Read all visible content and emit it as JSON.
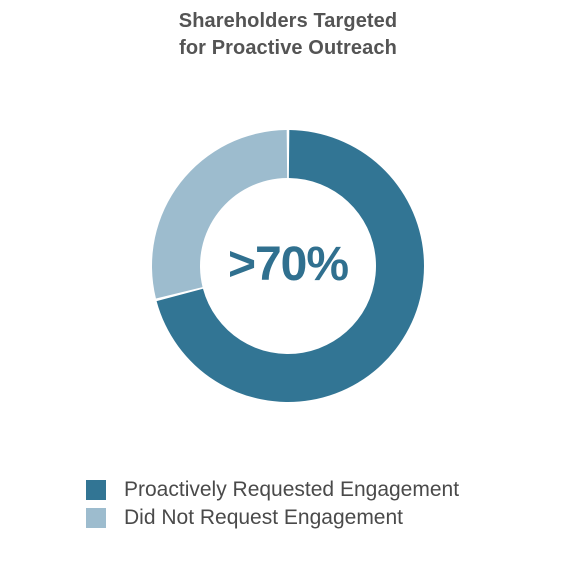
{
  "chart_data": {
    "type": "pie",
    "style": "donut",
    "title_lines": [
      "Shareholders Targeted",
      "for Proactive Outreach"
    ],
    "center_label": ">70%",
    "categories": [
      "Proactively Requested Engagement",
      "Did Not Request Engagement"
    ],
    "values": [
      71,
      29
    ],
    "colors": [
      "#327594",
      "#9dbcce"
    ],
    "legend_placement": "bottom"
  }
}
